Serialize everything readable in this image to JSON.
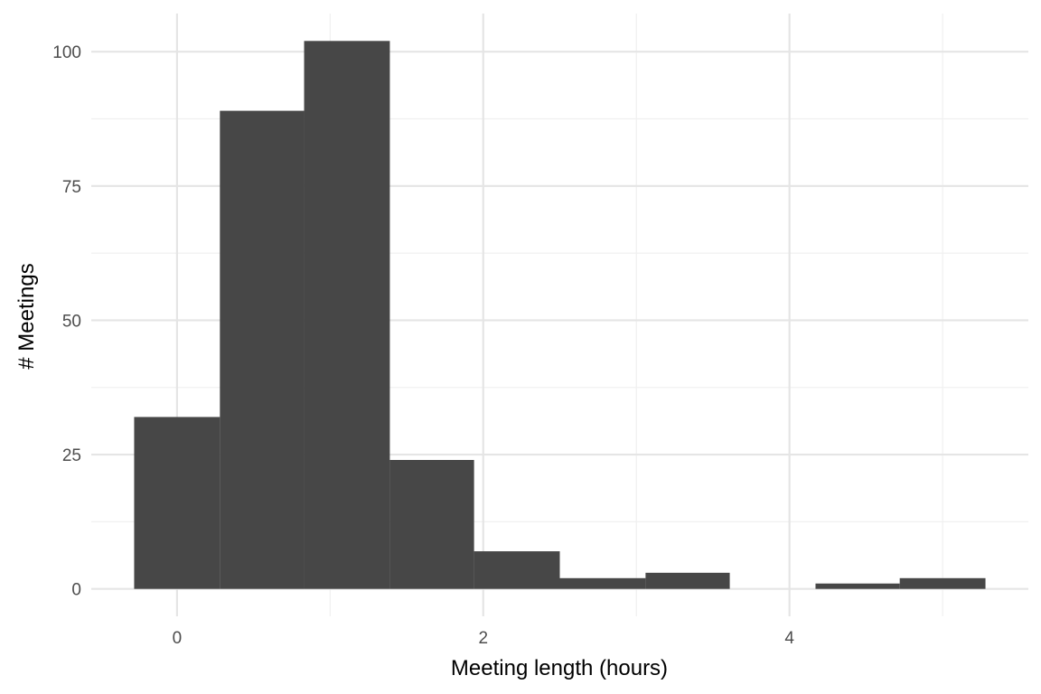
{
  "chart_data": {
    "type": "bar",
    "subtype": "histogram",
    "title": "",
    "xlabel": "Meeting length (hours)",
    "ylabel": "# Meetings",
    "xlim": [
      -0.56,
      5.56
    ],
    "ylim": [
      -5.1,
      107.1
    ],
    "x_ticks": [
      0,
      2,
      4
    ],
    "y_ticks": [
      0,
      25,
      50,
      75,
      100
    ],
    "x_minor_gridlines": [
      1,
      3,
      5
    ],
    "y_minor_gridlines": [
      12.5,
      37.5,
      62.5,
      87.5
    ],
    "grid": true,
    "bin_width": 0.556,
    "bins": [
      {
        "x0": -0.28,
        "x1": 0.28,
        "count": 32
      },
      {
        "x0": 0.28,
        "x1": 0.83,
        "count": 89
      },
      {
        "x0": 0.83,
        "x1": 1.39,
        "count": 102
      },
      {
        "x0": 1.39,
        "x1": 1.94,
        "count": 24
      },
      {
        "x0": 1.94,
        "x1": 2.5,
        "count": 7
      },
      {
        "x0": 2.5,
        "x1": 3.06,
        "count": 2
      },
      {
        "x0": 3.06,
        "x1": 3.61,
        "count": 3
      },
      {
        "x0": 3.61,
        "x1": 4.17,
        "count": 0
      },
      {
        "x0": 4.17,
        "x1": 4.72,
        "count": 1
      },
      {
        "x0": 4.72,
        "x1": 5.28,
        "count": 2
      }
    ],
    "colors": {
      "bar": "#474747",
      "grid_major": "#e5e5e5",
      "grid_minor": "#f0f0f0"
    }
  }
}
